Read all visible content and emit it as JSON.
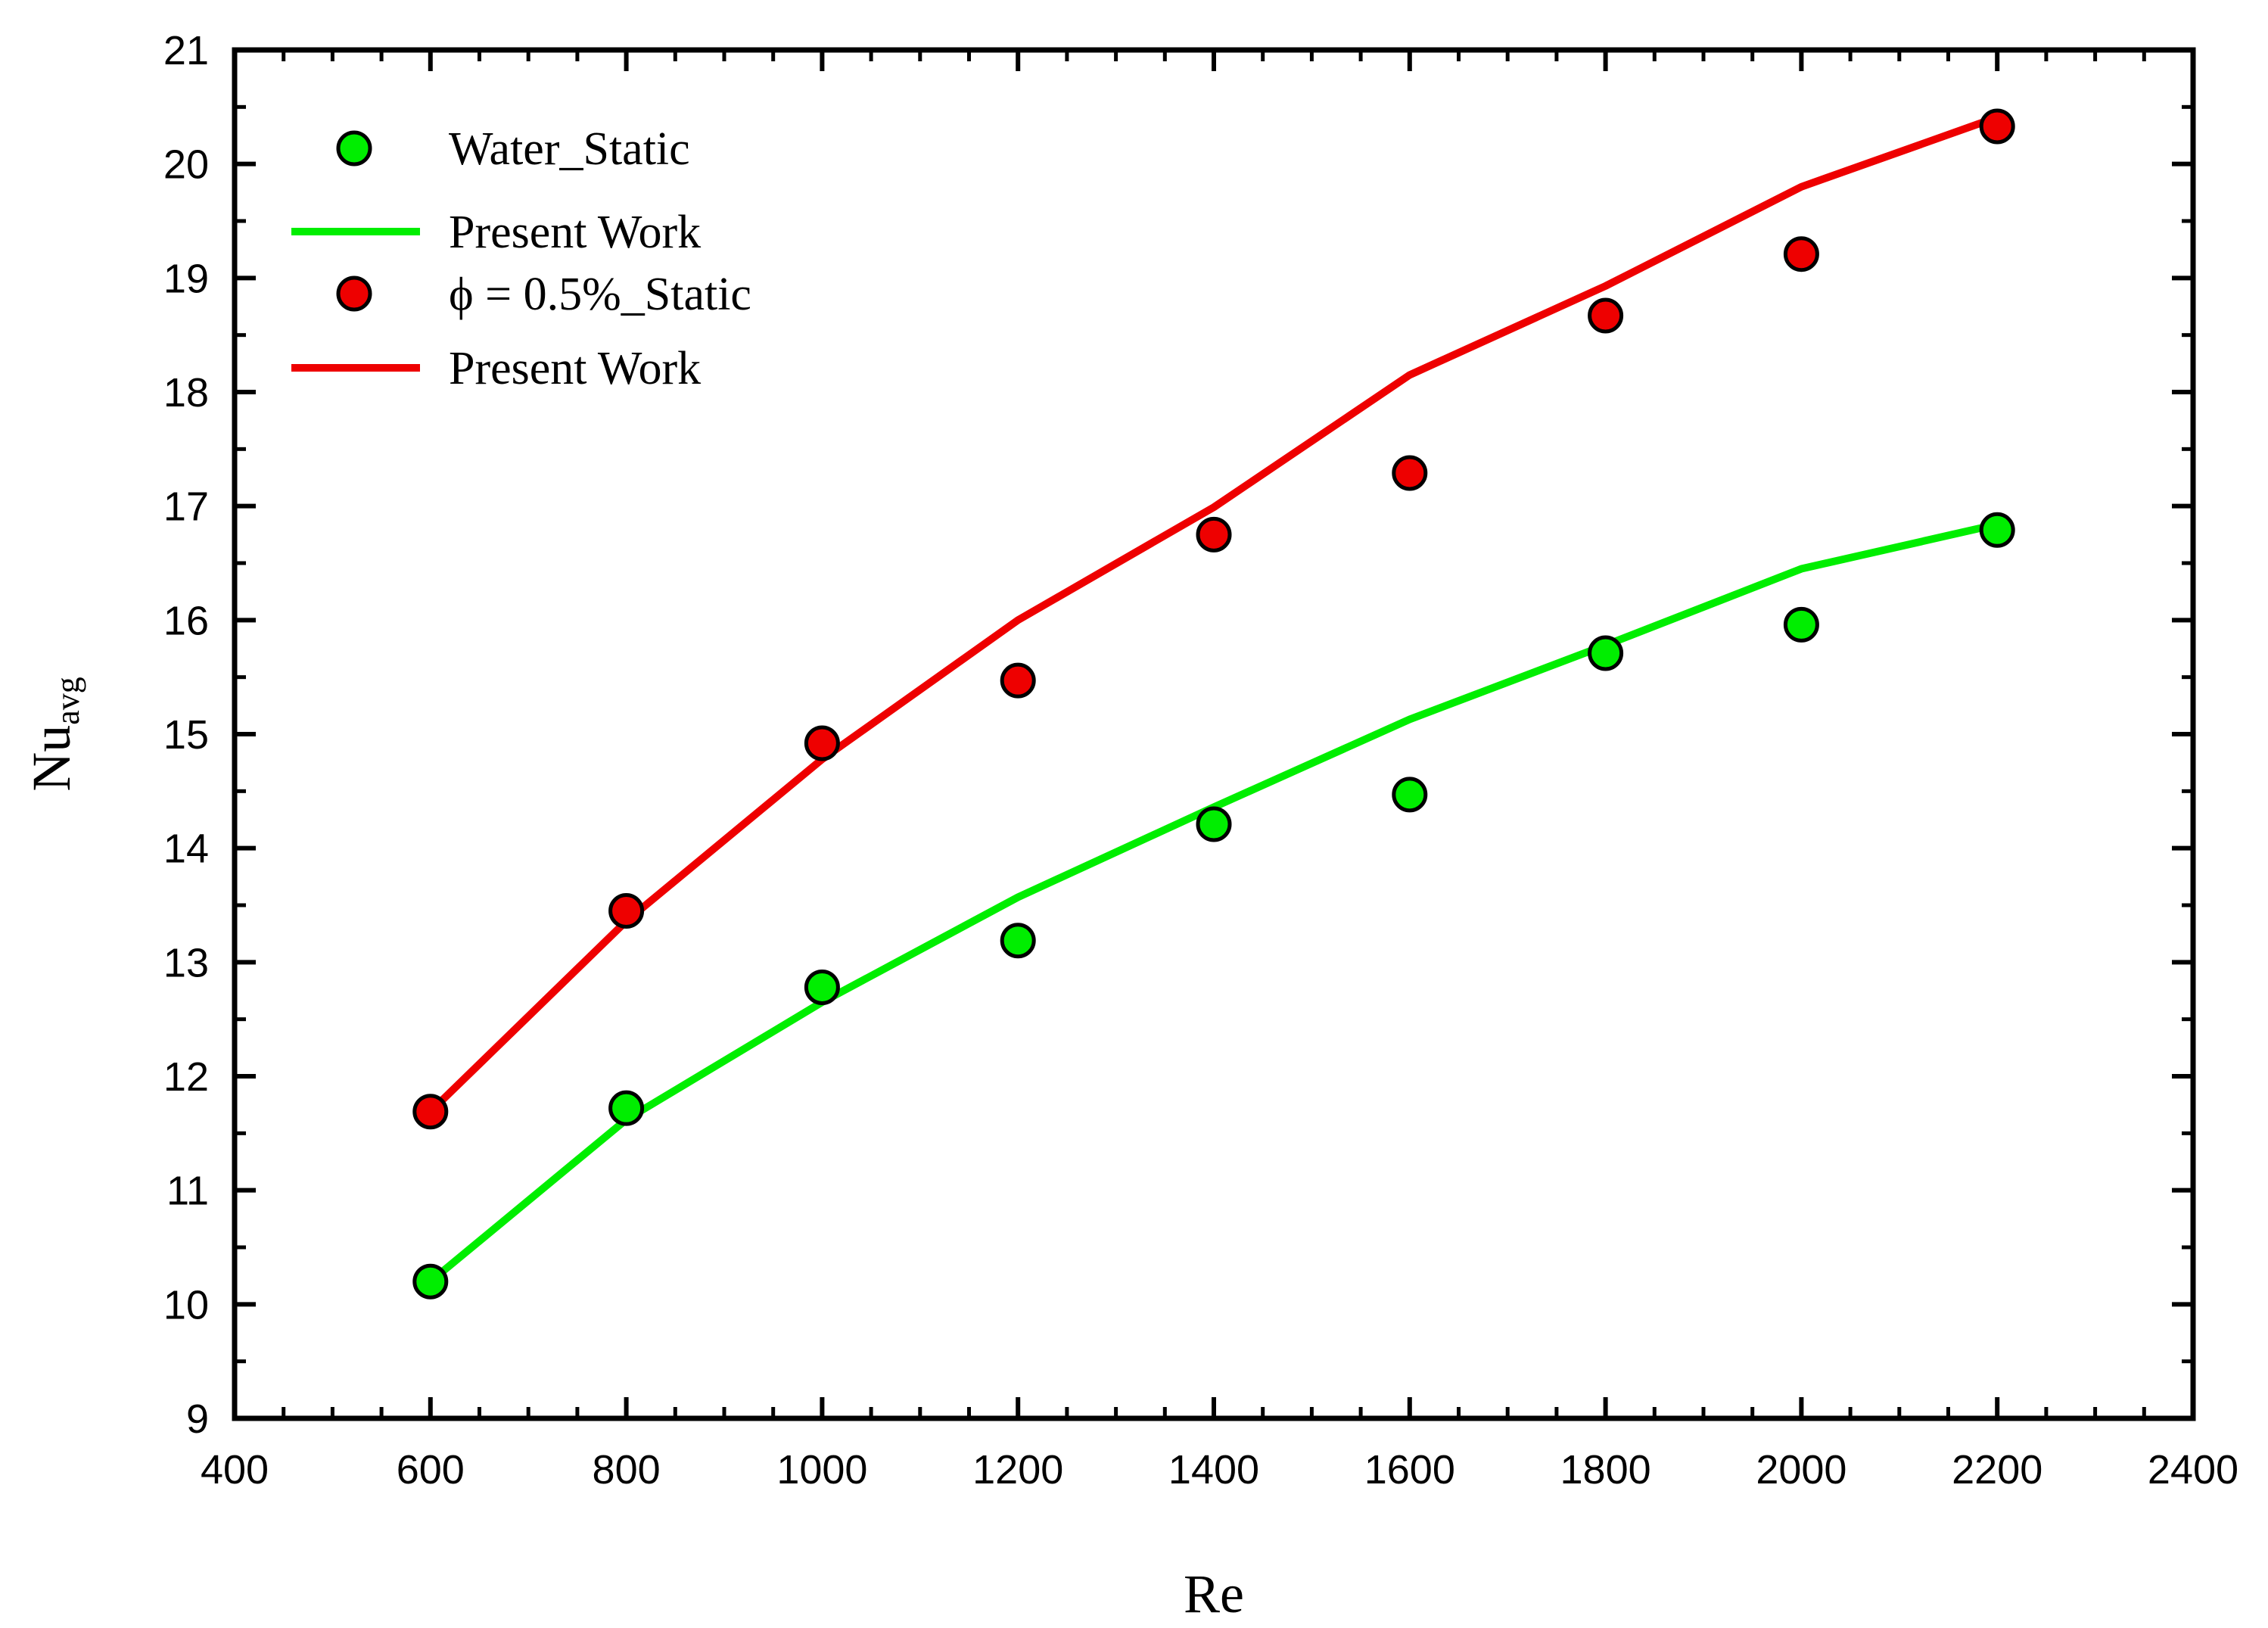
{
  "chart_data": {
    "type": "scatter",
    "title": "",
    "xlabel": "Re",
    "ylabel": {
      "main": "Nu",
      "subscript": "avg"
    },
    "xlim": [
      400,
      2400
    ],
    "ylim": [
      9,
      21
    ],
    "x_ticks": [
      400,
      600,
      800,
      1000,
      1200,
      1400,
      1600,
      1800,
      2000,
      2200,
      2400
    ],
    "y_ticks": [
      9,
      10,
      11,
      12,
      13,
      14,
      15,
      16,
      17,
      18,
      19,
      20,
      21
    ],
    "grid": false,
    "legend_position": "top-left",
    "series": [
      {
        "name": "Water_Static",
        "kind": "markers",
        "color": "#00ee00",
        "x": [
          600,
          800,
          1000,
          1200,
          1400,
          1600,
          1800,
          2000,
          2200
        ],
        "y": [
          10.2,
          11.72,
          12.78,
          13.19,
          14.21,
          14.47,
          15.71,
          15.96,
          16.79
        ]
      },
      {
        "name": "Present Work",
        "kind": "line",
        "color": "#00ee00",
        "x": [
          600,
          800,
          1000,
          1200,
          1400,
          1600,
          1800,
          2000,
          2200
        ],
        "y": [
          10.2,
          11.62,
          12.65,
          13.57,
          14.36,
          15.13,
          15.78,
          16.45,
          16.84
        ]
      },
      {
        "name": "ϕ = 0.5%_Static",
        "kind": "markers",
        "color": "#ee0000",
        "x": [
          600,
          800,
          1000,
          1200,
          1400,
          1600,
          1800,
          2000,
          2200
        ],
        "y": [
          11.69,
          13.45,
          14.92,
          15.47,
          16.75,
          17.29,
          18.67,
          19.21,
          20.33
        ]
      },
      {
        "name": "Present Work",
        "kind": "line",
        "color": "#ee0000",
        "x": [
          600,
          800,
          1000,
          1200,
          1400,
          1600,
          1800,
          2000,
          2200
        ],
        "y": [
          11.69,
          13.36,
          14.78,
          16.0,
          16.99,
          18.15,
          18.93,
          19.8,
          20.41
        ]
      }
    ]
  }
}
